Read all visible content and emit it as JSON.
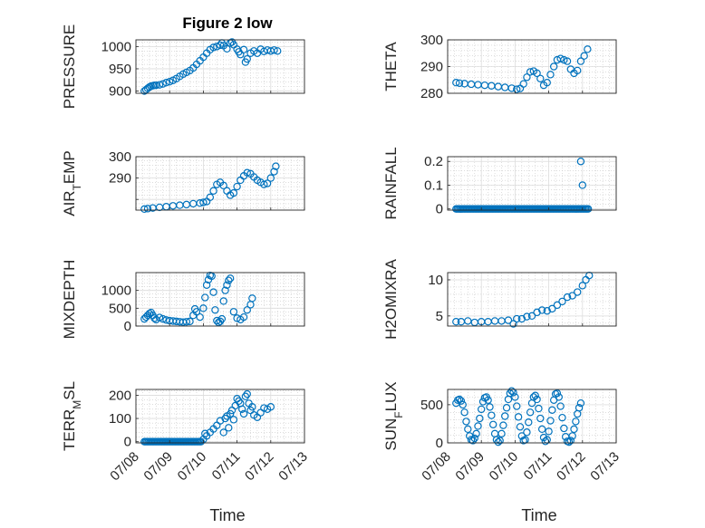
{
  "figure": {
    "title": "Figure 2 low",
    "marker_color": "#0072BD"
  },
  "chart_data": [
    {
      "type": "scatter",
      "ylabel": "PRESSURE",
      "ylim": [
        895,
        1015
      ],
      "yticks": [
        900,
        950,
        1000
      ],
      "xlim": [
        "07/08",
        "07/13"
      ],
      "xticks": [
        "07/08",
        "07/09",
        "07/10",
        "07/11",
        "07/12",
        "07/13"
      ],
      "grid": true,
      "points": [
        [
          8.25,
          900
        ],
        [
          8.3,
          903
        ],
        [
          8.35,
          906
        ],
        [
          8.4,
          909
        ],
        [
          8.45,
          911
        ],
        [
          8.5,
          912
        ],
        [
          8.55,
          913
        ],
        [
          8.6,
          913
        ],
        [
          8.7,
          914
        ],
        [
          8.8,
          916
        ],
        [
          8.9,
          919
        ],
        [
          9.0,
          921
        ],
        [
          9.1,
          924
        ],
        [
          9.2,
          928
        ],
        [
          9.3,
          933
        ],
        [
          9.4,
          938
        ],
        [
          9.5,
          942
        ],
        [
          9.6,
          946
        ],
        [
          9.7,
          952
        ],
        [
          9.8,
          960
        ],
        [
          9.9,
          968
        ],
        [
          10.0,
          976
        ],
        [
          10.1,
          985
        ],
        [
          10.2,
          993
        ],
        [
          10.3,
          998
        ],
        [
          10.4,
          1000
        ],
        [
          10.5,
          1003
        ],
        [
          10.55,
          1008
        ],
        [
          10.6,
          1002
        ],
        [
          10.7,
          995
        ],
        [
          10.8,
          1008
        ],
        [
          10.85,
          1010
        ],
        [
          10.9,
          1004
        ],
        [
          11.0,
          994
        ],
        [
          11.05,
          988
        ],
        [
          11.1,
          982
        ],
        [
          11.2,
          993
        ],
        [
          11.25,
          965
        ],
        [
          11.3,
          972
        ],
        [
          11.4,
          985
        ],
        [
          11.5,
          990
        ],
        [
          11.6,
          985
        ],
        [
          11.7,
          994
        ],
        [
          11.8,
          989
        ],
        [
          11.9,
          992
        ],
        [
          12.0,
          990
        ],
        [
          12.1,
          992
        ],
        [
          12.2,
          990
        ]
      ]
    },
    {
      "type": "scatter",
      "ylabel": "THETA",
      "ylim": [
        280,
        300
      ],
      "yticks": [
        280,
        290,
        300
      ],
      "xlim": [
        "07/08",
        "07/13"
      ],
      "xticks": [
        "07/08",
        "07/09",
        "07/10",
        "07/11",
        "07/12",
        "07/13"
      ],
      "grid": true,
      "points": [
        [
          8.25,
          284
        ],
        [
          8.35,
          283.8
        ],
        [
          8.5,
          283.6
        ],
        [
          8.7,
          283.4
        ],
        [
          8.9,
          283.2
        ],
        [
          9.1,
          283.0
        ],
        [
          9.3,
          282.8
        ],
        [
          9.5,
          282.5
        ],
        [
          9.7,
          282.2
        ],
        [
          9.9,
          281.9
        ],
        [
          10.05,
          281.5
        ],
        [
          10.15,
          281.8
        ],
        [
          10.25,
          283.5
        ],
        [
          10.35,
          286
        ],
        [
          10.45,
          288
        ],
        [
          10.55,
          288.3
        ],
        [
          10.65,
          287.5
        ],
        [
          10.75,
          285.5
        ],
        [
          10.85,
          283
        ],
        [
          10.95,
          284
        ],
        [
          11.05,
          287
        ],
        [
          11.15,
          290
        ],
        [
          11.25,
          292.5
        ],
        [
          11.35,
          293
        ],
        [
          11.45,
          292.5
        ],
        [
          11.55,
          292
        ],
        [
          11.65,
          289
        ],
        [
          11.75,
          287.5
        ],
        [
          11.85,
          288.5
        ],
        [
          11.95,
          292
        ],
        [
          12.05,
          294
        ],
        [
          12.15,
          296.5
        ]
      ]
    },
    {
      "type": "scatter",
      "ylabel": "AIR_TEMP",
      "ylim": [
        275,
        300
      ],
      "yticks": [
        280,
        290,
        300
      ],
      "ytickLabels": [
        "",
        "290",
        "300"
      ],
      "xlim": [
        "07/08",
        "07/13"
      ],
      "xticks": [
        "07/08",
        "07/09",
        "07/10",
        "07/11",
        "07/12",
        "07/13"
      ],
      "grid": true,
      "points": [
        [
          8.25,
          275.5
        ],
        [
          8.35,
          275.7
        ],
        [
          8.5,
          276
        ],
        [
          8.7,
          276.3
        ],
        [
          8.9,
          276.6
        ],
        [
          9.1,
          277
        ],
        [
          9.3,
          277.3
        ],
        [
          9.5,
          277.6
        ],
        [
          9.7,
          278
        ],
        [
          9.9,
          278.3
        ],
        [
          10.0,
          278.6
        ],
        [
          10.1,
          279
        ],
        [
          10.2,
          281
        ],
        [
          10.3,
          284
        ],
        [
          10.4,
          287
        ],
        [
          10.5,
          288
        ],
        [
          10.6,
          286.5
        ],
        [
          10.7,
          284
        ],
        [
          10.8,
          282
        ],
        [
          10.9,
          283
        ],
        [
          11.0,
          286
        ],
        [
          11.1,
          289
        ],
        [
          11.2,
          291
        ],
        [
          11.3,
          292.5
        ],
        [
          11.4,
          292
        ],
        [
          11.5,
          290.5
        ],
        [
          11.6,
          289
        ],
        [
          11.7,
          288
        ],
        [
          11.8,
          287
        ],
        [
          11.9,
          287.5
        ],
        [
          12.0,
          290
        ],
        [
          12.1,
          293
        ],
        [
          12.15,
          295.5
        ]
      ]
    },
    {
      "type": "scatter",
      "ylabel": "RAINFALL",
      "ylim": [
        -0.005,
        0.22
      ],
      "yticks": [
        0,
        0.1,
        0.2
      ],
      "xlim": [
        "07/08",
        "07/13"
      ],
      "xticks": [
        "07/08",
        "07/09",
        "07/10",
        "07/11",
        "07/12",
        "07/13"
      ],
      "grid": true,
      "zero_series_x_range": [
        8.25,
        12.2
      ],
      "points": [
        [
          11.95,
          0.2
        ],
        [
          12.0,
          0.1
        ]
      ]
    },
    {
      "type": "scatter",
      "ylabel": "MIXDEPTH",
      "ylim": [
        0,
        1500
      ],
      "yticks": [
        0,
        500,
        1000
      ],
      "xlim": [
        "07/08",
        "07/13"
      ],
      "xticks": [
        "07/08",
        "07/09",
        "07/10",
        "07/11",
        "07/12",
        "07/13"
      ],
      "grid": true,
      "points": [
        [
          8.25,
          200
        ],
        [
          8.3,
          250
        ],
        [
          8.35,
          300
        ],
        [
          8.4,
          350
        ],
        [
          8.45,
          380
        ],
        [
          8.5,
          300
        ],
        [
          8.55,
          220
        ],
        [
          8.6,
          180
        ],
        [
          8.7,
          240
        ],
        [
          8.8,
          200
        ],
        [
          8.9,
          170
        ],
        [
          9.0,
          150
        ],
        [
          9.1,
          140
        ],
        [
          9.2,
          130
        ],
        [
          9.3,
          120
        ],
        [
          9.4,
          110
        ],
        [
          9.5,
          120
        ],
        [
          9.6,
          130
        ],
        [
          9.7,
          300
        ],
        [
          9.75,
          480
        ],
        [
          9.8,
          400
        ],
        [
          9.9,
          250
        ],
        [
          10.0,
          500
        ],
        [
          10.05,
          800
        ],
        [
          10.1,
          1150
        ],
        [
          10.15,
          1300
        ],
        [
          10.2,
          1420
        ],
        [
          10.25,
          1400
        ],
        [
          10.3,
          950
        ],
        [
          10.35,
          450
        ],
        [
          10.4,
          150
        ],
        [
          10.45,
          100
        ],
        [
          10.5,
          130
        ],
        [
          10.55,
          200
        ],
        [
          10.6,
          700
        ],
        [
          10.65,
          1000
        ],
        [
          10.7,
          1150
        ],
        [
          10.75,
          1280
        ],
        [
          10.8,
          1340
        ],
        [
          10.9,
          400
        ],
        [
          11.0,
          220
        ],
        [
          11.1,
          180
        ],
        [
          11.2,
          250
        ],
        [
          11.3,
          450
        ],
        [
          11.4,
          600
        ],
        [
          11.45,
          780
        ]
      ]
    },
    {
      "type": "scatter",
      "ylabel": "H2OMIXRA",
      "ylim": [
        3.6,
        11
      ],
      "yticks": [
        5,
        10
      ],
      "xlim": [
        "07/08",
        "07/13"
      ],
      "xticks": [
        "07/08",
        "07/09",
        "07/10",
        "07/11",
        "07/12",
        "07/13"
      ],
      "grid": true,
      "points": [
        [
          8.25,
          4.2
        ],
        [
          8.4,
          4.2
        ],
        [
          8.6,
          4.3
        ],
        [
          8.8,
          4.1
        ],
        [
          9.0,
          4.2
        ],
        [
          9.2,
          4.2
        ],
        [
          9.4,
          4.3
        ],
        [
          9.6,
          4.3
        ],
        [
          9.8,
          4.4
        ],
        [
          9.95,
          3.9
        ],
        [
          10.05,
          4.6
        ],
        [
          10.2,
          4.6
        ],
        [
          10.35,
          4.9
        ],
        [
          10.5,
          5.0
        ],
        [
          10.65,
          5.5
        ],
        [
          10.8,
          5.8
        ],
        [
          10.95,
          5.7
        ],
        [
          11.1,
          6.0
        ],
        [
          11.25,
          6.5
        ],
        [
          11.4,
          7.0
        ],
        [
          11.55,
          7.6
        ],
        [
          11.7,
          7.8
        ],
        [
          11.85,
          8.3
        ],
        [
          12.0,
          9.2
        ],
        [
          12.1,
          10.0
        ],
        [
          12.2,
          10.6
        ]
      ]
    },
    {
      "type": "scatter",
      "ylabel": "TERR_MSL",
      "ylim": [
        -5,
        225
      ],
      "yticks": [
        0,
        100,
        200
      ],
      "xlim": [
        "07/08",
        "07/13"
      ],
      "xticks": [
        "07/08",
        "07/09",
        "07/10",
        "07/11",
        "07/12",
        "07/13"
      ],
      "grid": true,
      "zero_series_x_range": [
        8.25,
        9.95
      ],
      "points": [
        [
          10.0,
          10
        ],
        [
          10.05,
          35
        ],
        [
          10.1,
          25
        ],
        [
          10.2,
          40
        ],
        [
          10.3,
          55
        ],
        [
          10.4,
          70
        ],
        [
          10.5,
          90
        ],
        [
          10.6,
          40
        ],
        [
          10.65,
          100
        ],
        [
          10.7,
          110
        ],
        [
          10.75,
          60
        ],
        [
          10.8,
          120
        ],
        [
          10.85,
          135
        ],
        [
          10.9,
          95
        ],
        [
          10.95,
          155
        ],
        [
          11.0,
          185
        ],
        [
          11.05,
          175
        ],
        [
          11.1,
          165
        ],
        [
          11.15,
          140
        ],
        [
          11.2,
          120
        ],
        [
          11.25,
          195
        ],
        [
          11.3,
          205
        ],
        [
          11.35,
          165
        ],
        [
          11.4,
          135
        ],
        [
          11.45,
          150
        ],
        [
          11.5,
          115
        ],
        [
          11.6,
          105
        ],
        [
          11.7,
          125
        ],
        [
          11.8,
          145
        ],
        [
          11.9,
          140
        ],
        [
          12.0,
          150
        ]
      ]
    },
    {
      "type": "scatter",
      "ylabel": "SUN_FLUX",
      "ylim": [
        0,
        700
      ],
      "yticks": [
        0,
        500
      ],
      "xlim": [
        "07/08",
        "07/13"
      ],
      "xticks": [
        "07/08",
        "07/09",
        "07/10",
        "07/11",
        "07/12",
        "07/13"
      ],
      "grid": true,
      "points": [
        [
          8.25,
          520
        ],
        [
          8.3,
          560
        ],
        [
          8.35,
          570
        ],
        [
          8.4,
          550
        ],
        [
          8.45,
          500
        ],
        [
          8.5,
          400
        ],
        [
          8.55,
          280
        ],
        [
          8.6,
          180
        ],
        [
          8.65,
          90
        ],
        [
          8.7,
          40
        ],
        [
          8.75,
          30
        ],
        [
          8.8,
          60
        ],
        [
          8.85,
          120
        ],
        [
          8.9,
          220
        ],
        [
          8.95,
          320
        ],
        [
          9.0,
          440
        ],
        [
          9.05,
          540
        ],
        [
          9.1,
          590
        ],
        [
          9.15,
          600
        ],
        [
          9.2,
          560
        ],
        [
          9.25,
          470
        ],
        [
          9.3,
          360
        ],
        [
          9.35,
          240
        ],
        [
          9.4,
          120
        ],
        [
          9.45,
          40
        ],
        [
          9.5,
          10
        ],
        [
          9.55,
          30
        ],
        [
          9.6,
          120
        ],
        [
          9.65,
          230
        ],
        [
          9.7,
          350
        ],
        [
          9.75,
          460
        ],
        [
          9.8,
          570
        ],
        [
          9.85,
          650
        ],
        [
          9.9,
          680
        ],
        [
          9.95,
          660
        ],
        [
          10.0,
          600
        ],
        [
          10.05,
          480
        ],
        [
          10.1,
          340
        ],
        [
          10.15,
          210
        ],
        [
          10.2,
          90
        ],
        [
          10.25,
          30
        ],
        [
          10.3,
          40
        ],
        [
          10.35,
          140
        ],
        [
          10.4,
          270
        ],
        [
          10.45,
          400
        ],
        [
          10.5,
          520
        ],
        [
          10.55,
          600
        ],
        [
          10.6,
          620
        ],
        [
          10.65,
          570
        ],
        [
          10.7,
          450
        ],
        [
          10.75,
          320
        ],
        [
          10.8,
          180
        ],
        [
          10.85,
          70
        ],
        [
          10.9,
          20
        ],
        [
          10.95,
          40
        ],
        [
          11.0,
          150
        ],
        [
          11.05,
          290
        ],
        [
          11.1,
          430
        ],
        [
          11.15,
          560
        ],
        [
          11.2,
          640
        ],
        [
          11.25,
          650
        ],
        [
          11.3,
          600
        ],
        [
          11.35,
          480
        ],
        [
          11.4,
          330
        ],
        [
          11.45,
          190
        ],
        [
          11.5,
          80
        ],
        [
          11.55,
          20
        ],
        [
          11.6,
          10
        ],
        [
          11.65,
          30
        ],
        [
          11.7,
          90
        ],
        [
          11.75,
          180
        ],
        [
          11.8,
          280
        ],
        [
          11.85,
          380
        ],
        [
          11.9,
          460
        ],
        [
          11.95,
          520
        ]
      ]
    }
  ],
  "x_axis": {
    "xlabel": "Time",
    "tick_labels": [
      "07/08",
      "07/09",
      "07/10",
      "07/11",
      "07/12",
      "07/13"
    ]
  }
}
